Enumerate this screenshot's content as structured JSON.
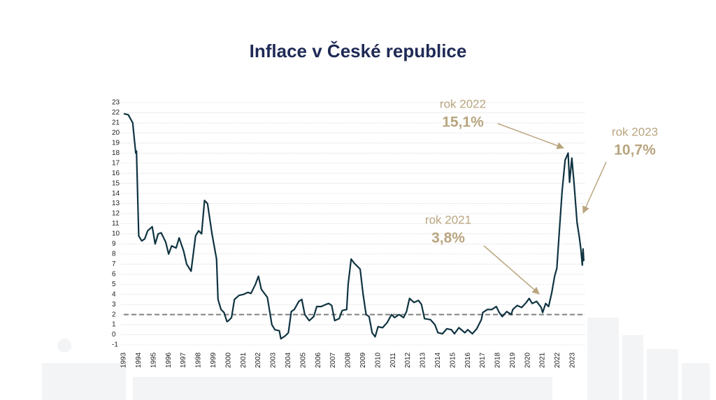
{
  "chart_data": {
    "type": "line",
    "title": "Inflace v České republice",
    "x": [
      1993.0,
      1993.3,
      1993.6,
      1993.8,
      1993.85,
      1994.0,
      1994.2,
      1994.4,
      1994.6,
      1994.9,
      1995.1,
      1995.3,
      1995.5,
      1995.8,
      1996.0,
      1996.2,
      1996.5,
      1996.7,
      1997.0,
      1997.2,
      1997.5,
      1997.8,
      1998.0,
      1998.2,
      1998.4,
      1998.6,
      1998.9,
      1999.2,
      1999.3,
      1999.5,
      1999.7,
      1999.9,
      2000.0,
      2000.2,
      2000.4,
      2000.7,
      2001.0,
      2001.3,
      2001.5,
      2001.8,
      2002.0,
      2002.2,
      2002.6,
      2002.9,
      2003.1,
      2003.4,
      2003.5,
      2003.8,
      2004.0,
      2004.2,
      2004.4,
      2004.7,
      2004.9,
      2005.1,
      2005.4,
      2005.7,
      2005.9,
      2006.2,
      2006.5,
      2006.7,
      2006.9,
      2007.1,
      2007.4,
      2007.6,
      2007.9,
      2008.0,
      2008.2,
      2008.4,
      2008.6,
      2008.8,
      2009.0,
      2009.2,
      2009.4,
      2009.6,
      2009.8,
      2010.0,
      2010.3,
      2010.6,
      2010.9,
      2011.1,
      2011.4,
      2011.7,
      2011.9,
      2012.1,
      2012.4,
      2012.7,
      2012.9,
      2013.1,
      2013.5,
      2013.8,
      2014.0,
      2014.3,
      2014.6,
      2014.9,
      2015.1,
      2015.4,
      2015.8,
      2016.0,
      2016.3,
      2016.6,
      2016.9,
      2017.0,
      2017.3,
      2017.6,
      2017.9,
      2018.1,
      2018.3,
      2018.6,
      2018.9,
      2019.0,
      2019.3,
      2019.6,
      2019.9,
      2020.1,
      2020.3,
      2020.6,
      2020.9,
      2021.0,
      2021.2,
      2021.4,
      2021.6,
      2021.8,
      2021.95,
      2022.1,
      2022.3,
      2022.5,
      2022.7,
      2022.8,
      2022.95,
      2023.1,
      2023.3,
      2023.45,
      2023.55,
      2023.65,
      2023.7,
      2023.75
    ],
    "series": [
      {
        "color": "#0f3341",
        "values": [
          21.9,
          21.8,
          21.0,
          18.0,
          18.2,
          9.8,
          9.3,
          9.5,
          10.3,
          10.7,
          9.0,
          10.0,
          10.1,
          9.2,
          8.0,
          8.8,
          8.6,
          9.6,
          8.3,
          7.0,
          6.3,
          9.8,
          10.3,
          10.0,
          13.3,
          13.0,
          10.0,
          7.5,
          3.5,
          2.5,
          2.2,
          1.3,
          1.4,
          1.7,
          3.5,
          3.9,
          4.0,
          4.2,
          4.1,
          5.0,
          5.8,
          4.5,
          3.7,
          1.0,
          0.5,
          0.4,
          -0.4,
          -0.1,
          0.2,
          2.3,
          2.5,
          3.3,
          3.5,
          2.0,
          1.4,
          1.8,
          2.8,
          2.8,
          3.0,
          3.1,
          2.9,
          1.4,
          1.6,
          2.4,
          2.5,
          5.0,
          7.5,
          7.1,
          6.8,
          6.5,
          4.0,
          2.0,
          1.8,
          0.2,
          -0.2,
          0.8,
          0.7,
          1.2,
          2.0,
          1.7,
          2.0,
          1.7,
          2.3,
          3.6,
          3.2,
          3.4,
          3.0,
          1.6,
          1.5,
          1.0,
          0.2,
          0.1,
          0.6,
          0.5,
          0.1,
          0.7,
          0.2,
          0.5,
          0.1,
          0.6,
          1.5,
          2.2,
          2.5,
          2.5,
          2.8,
          2.2,
          1.8,
          2.3,
          2.0,
          2.5,
          2.9,
          2.7,
          3.2,
          3.6,
          3.1,
          3.3,
          2.7,
          2.2,
          3.1,
          2.8,
          4.1,
          5.8,
          6.6,
          9.9,
          14.2,
          17.3,
          18.0,
          15.1,
          17.5,
          15.0,
          11.1,
          9.7,
          8.5,
          6.9,
          8.5,
          7.3
        ]
      }
    ],
    "xlim": [
      1993,
      2023.8
    ],
    "xticks": [
      1993,
      1994,
      1995,
      1996,
      1997,
      1998,
      1999,
      2000,
      2001,
      2002,
      2003,
      2004,
      2005,
      2006,
      2007,
      2008,
      2009,
      2010,
      2011,
      2012,
      2013,
      2014,
      2015,
      2016,
      2017,
      2018,
      2019,
      2020,
      2021,
      2022,
      2023
    ],
    "ylim": [
      -1,
      23
    ],
    "yticks": [
      -1,
      0,
      1,
      2,
      3,
      4,
      5,
      6,
      7,
      8,
      9,
      10,
      11,
      12,
      13,
      14,
      15,
      16,
      17,
      18,
      19,
      20,
      21,
      22,
      23
    ],
    "grid": true,
    "target": 2,
    "annotations": [
      {
        "label": "rok 2022",
        "value": "15,1%"
      },
      {
        "label": "rok 2023",
        "value": "10,7%"
      },
      {
        "label": "rok 2021",
        "value": "3,8%"
      }
    ]
  }
}
